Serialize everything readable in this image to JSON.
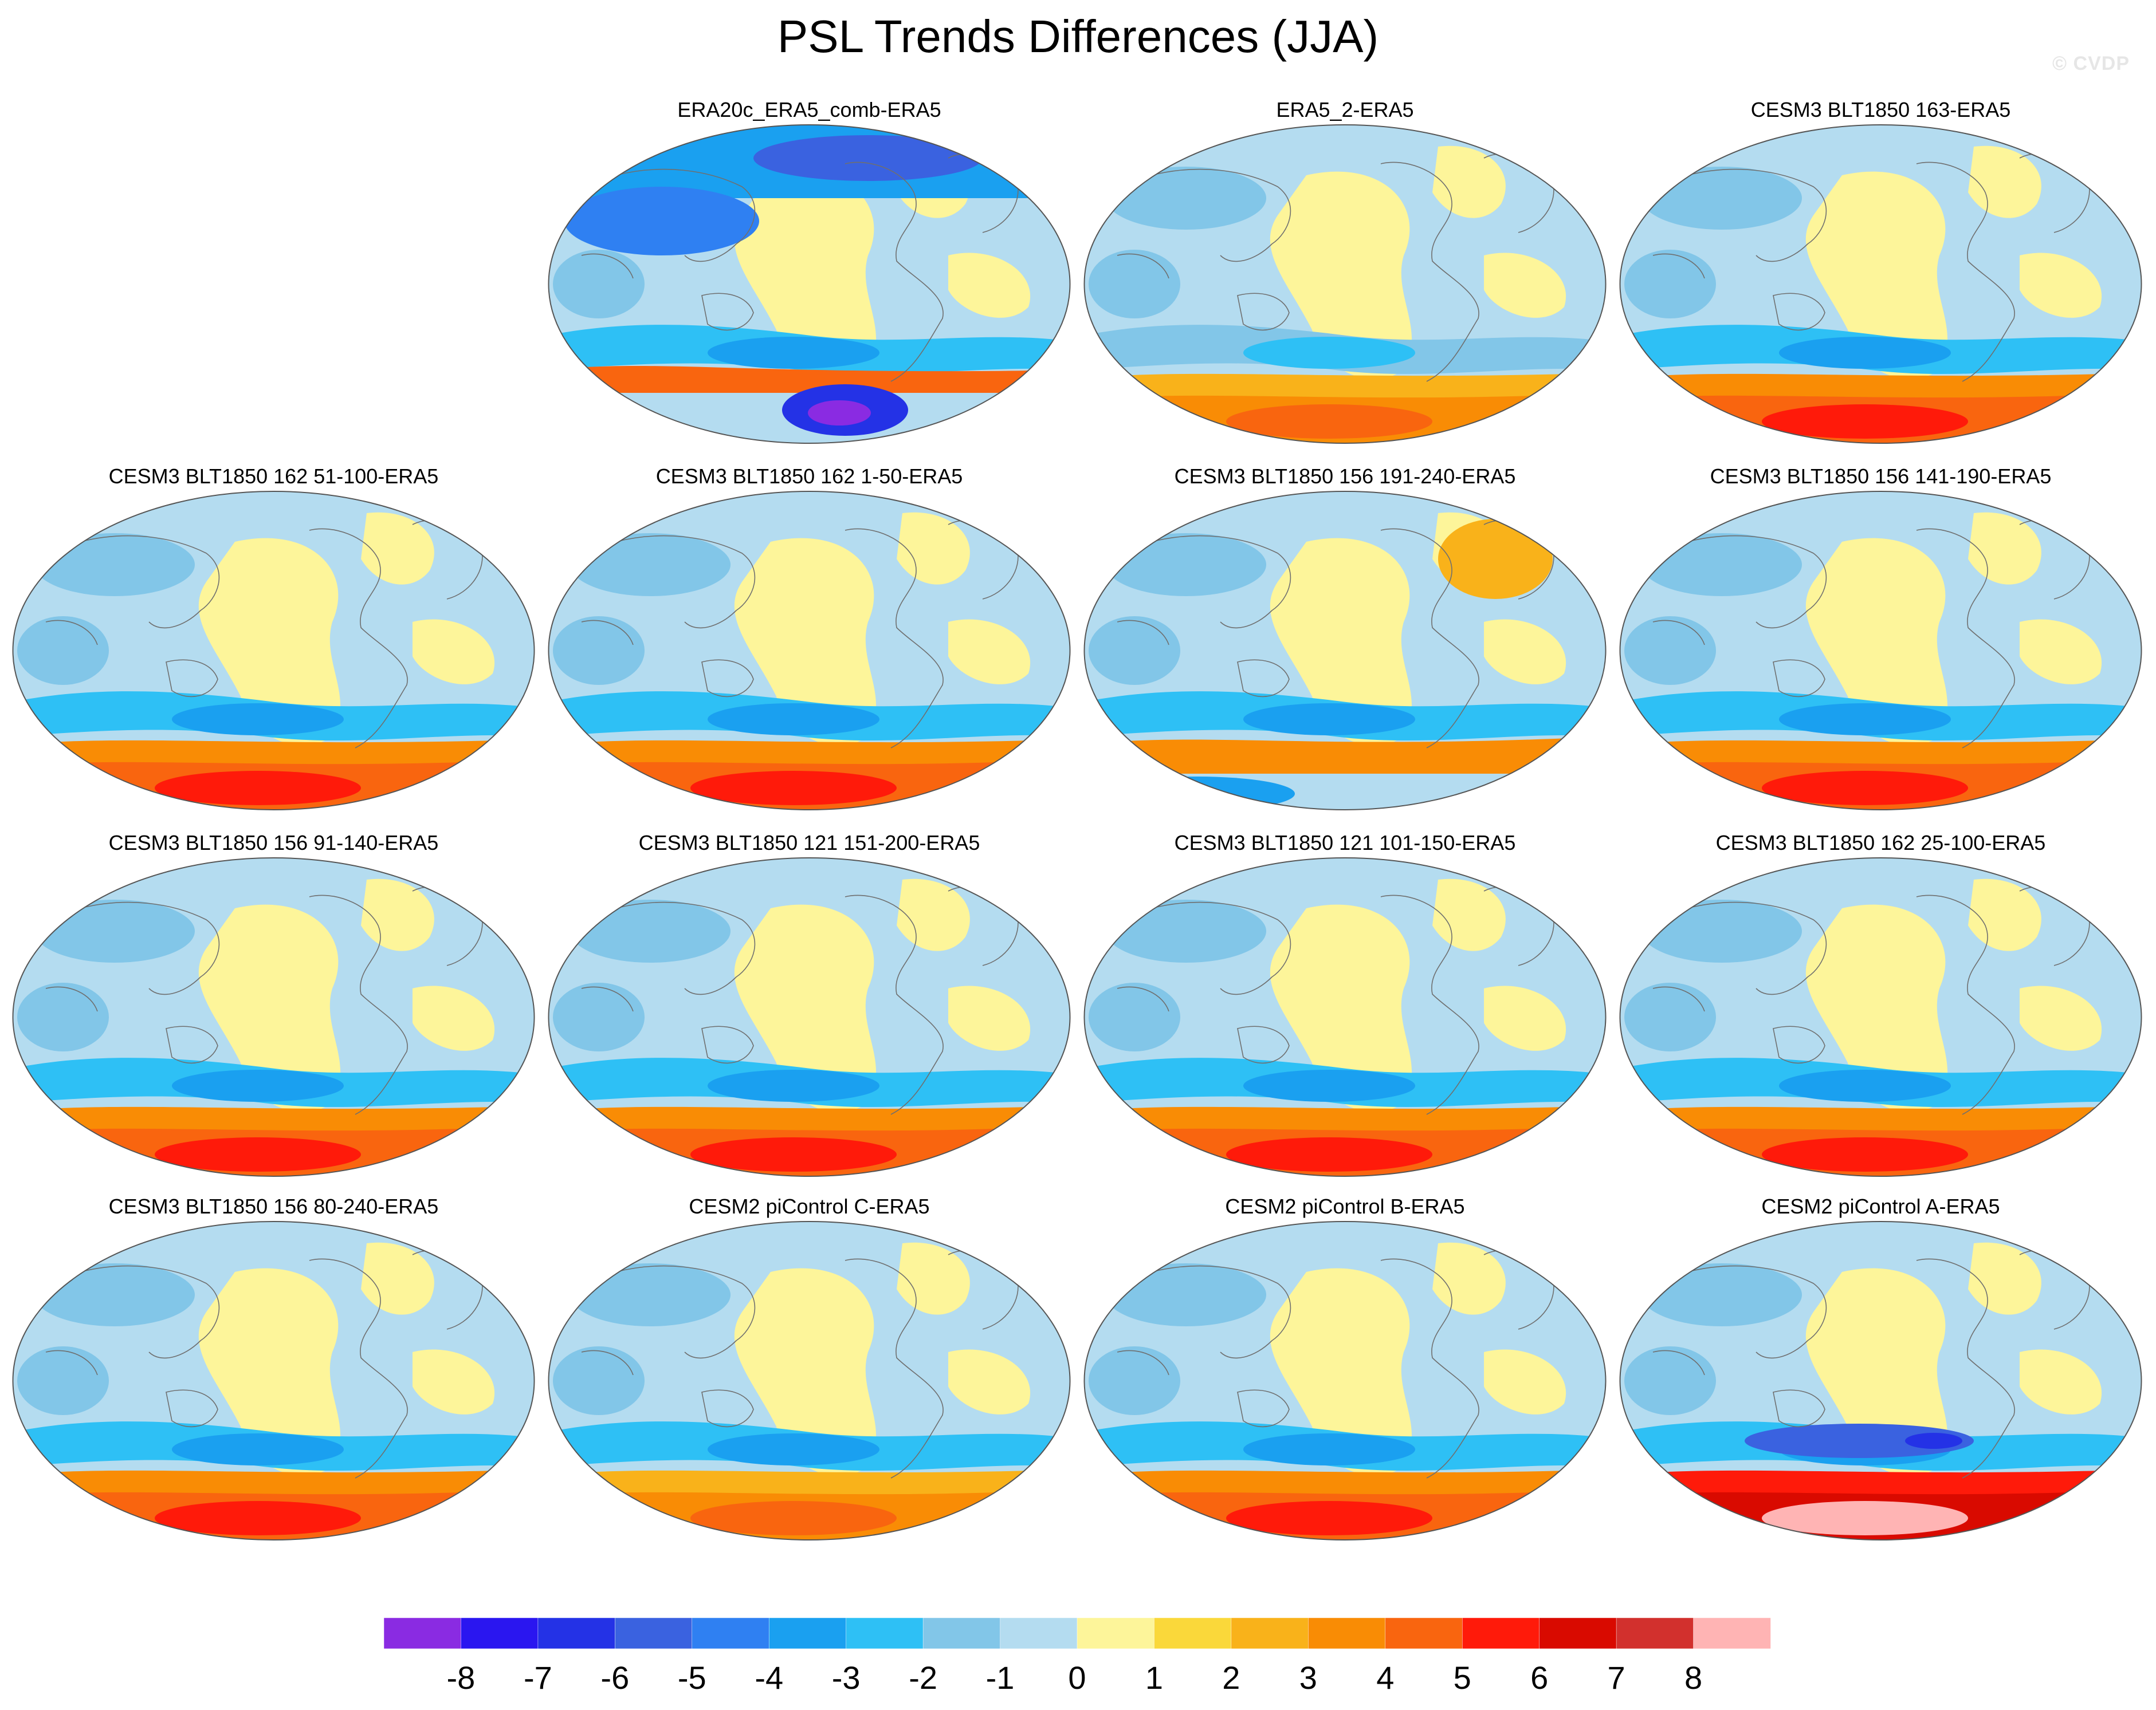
{
  "title": "PSL Trends Differences (JJA)",
  "watermark": "© CVDP",
  "chart_data": {
    "type": "heatmap",
    "projection": "global map",
    "title": "PSL Trends Differences (JJA)",
    "panels": [
      {
        "title": "ERA20c_ERA5_comb-ERA5",
        "grid_row": 0,
        "grid_col": 1,
        "pattern": "era20c"
      },
      {
        "title": "ERA5_2-ERA5",
        "grid_row": 0,
        "grid_col": 2,
        "pattern": "era5_2"
      },
      {
        "title": "CESM3 BLT1850 163-ERA5",
        "grid_row": 0,
        "grid_col": 3,
        "pattern": "cesm_strong"
      },
      {
        "title": "CESM3 BLT1850 162 51-100-ERA5",
        "grid_row": 1,
        "grid_col": 0,
        "pattern": "cesm_strong"
      },
      {
        "title": "CESM3 BLT1850 162 1-50-ERA5",
        "grid_row": 1,
        "grid_col": 1,
        "pattern": "cesm_mid"
      },
      {
        "title": "CESM3 BLT1850 156 191-240-ERA5",
        "grid_row": 1,
        "grid_col": 2,
        "pattern": "cesm_pole_blue"
      },
      {
        "title": "CESM3 BLT1850 156 141-190-ERA5",
        "grid_row": 1,
        "grid_col": 3,
        "pattern": "cesm_strong"
      },
      {
        "title": "CESM3 BLT1850 156 91-140-ERA5",
        "grid_row": 2,
        "grid_col": 0,
        "pattern": "cesm_mid"
      },
      {
        "title": "CESM3 BLT1850 121 151-200-ERA5",
        "grid_row": 2,
        "grid_col": 1,
        "pattern": "cesm_mid"
      },
      {
        "title": "CESM3 BLT1850 121 101-150-ERA5",
        "grid_row": 2,
        "grid_col": 2,
        "pattern": "cesm_mid"
      },
      {
        "title": "CESM3 BLT1850 162 25-100-ERA5",
        "grid_row": 2,
        "grid_col": 3,
        "pattern": "cesm_mid"
      },
      {
        "title": "CESM3 BLT1850 156 80-240-ERA5",
        "grid_row": 3,
        "grid_col": 0,
        "pattern": "cesm_mid"
      },
      {
        "title": "CESM2 piControl C-ERA5",
        "grid_row": 3,
        "grid_col": 1,
        "pattern": "cesm2_weak"
      },
      {
        "title": "CESM2 piControl B-ERA5",
        "grid_row": 3,
        "grid_col": 2,
        "pattern": "cesm_mid"
      },
      {
        "title": "CESM2 piControl A-ERA5",
        "grid_row": 3,
        "grid_col": 3,
        "pattern": "cesm2_strong"
      }
    ],
    "colorbar": {
      "tick_labels": [
        "-8",
        "-7",
        "-6",
        "-5",
        "-4",
        "-3",
        "-2",
        "-1",
        "0",
        "1",
        "2",
        "3",
        "4",
        "5",
        "6",
        "7",
        "8"
      ],
      "levels": [
        -8,
        -7,
        -6,
        -5,
        -4,
        -3,
        -2,
        -1,
        0,
        1,
        2,
        3,
        4,
        5,
        6,
        7,
        8
      ],
      "colors": [
        "#8a2be2",
        "#2a16f0",
        "#2432e6",
        "#3a62e0",
        "#2f80f2",
        "#1aa0f0",
        "#2ec0f5",
        "#82c6e8",
        "#b4dcf0",
        "#fdf59a",
        "#fad83a",
        "#f9b21a",
        "#f98c05",
        "#f9650f",
        "#ff1a0a",
        "#d90a00",
        "#d2302d",
        "#ffb4b4"
      ]
    }
  }
}
